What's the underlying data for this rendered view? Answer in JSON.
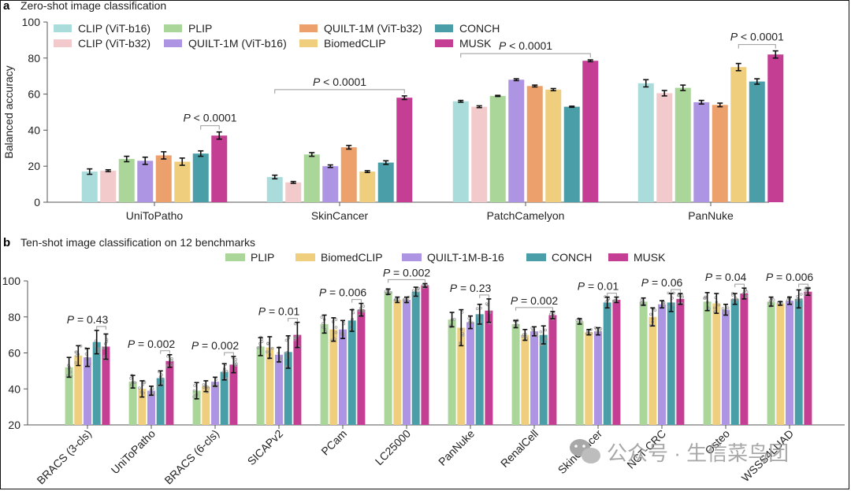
{
  "panels": {
    "a": {
      "letter": "a",
      "title": "Zero-shot image classification"
    },
    "b": {
      "letter": "b",
      "title": "Ten-shot image classification on 12 benchmarks"
    }
  },
  "watermark": {
    "text": "公众号 · 生信菜鸟团",
    "icon": "wechat-icon"
  },
  "chart_data": [
    {
      "id": "a",
      "type": "bar",
      "title": "Zero-shot image classification",
      "xlabel": "",
      "ylabel": "Balanced accuracy",
      "ylim": [
        0,
        100
      ],
      "yticks": [
        0,
        20,
        40,
        60,
        80,
        100
      ],
      "grid": false,
      "legend_position": "top-left",
      "categories": [
        "UniToPatho",
        "SkinCancer",
        "PatchCamelyon",
        "PanNuke"
      ],
      "series": [
        {
          "name": "CLIP (ViT-b16)",
          "color": "#abdcdc",
          "values": [
            17,
            14,
            56,
            66
          ],
          "err": [
            1.5,
            1,
            0.5,
            2
          ]
        },
        {
          "name": "CLIP (ViT-b32)",
          "color": "#f2cacb",
          "values": [
            17.5,
            11,
            53,
            60.5
          ],
          "err": [
            0.5,
            0.5,
            0.5,
            1.5
          ]
        },
        {
          "name": "PLIP",
          "color": "#aad69a",
          "values": [
            24,
            26.5,
            59,
            63.5
          ],
          "err": [
            1.5,
            1,
            0.3,
            1.5
          ]
        },
        {
          "name": "QUILT-1M (ViT-b16)",
          "color": "#ae95e4",
          "values": [
            23,
            20,
            68,
            55.5
          ],
          "err": [
            2,
            0.7,
            0.5,
            1
          ]
        },
        {
          "name": "QUILT-1M (ViT-b32)",
          "color": "#eca06b",
          "values": [
            26,
            30.5,
            64.5,
            54
          ],
          "err": [
            2,
            1,
            0.5,
            1
          ]
        },
        {
          "name": "BiomedCLIP",
          "color": "#efcf7e",
          "values": [
            22.5,
            17,
            62.5,
            75
          ],
          "err": [
            2,
            0.5,
            0.6,
            2
          ]
        },
        {
          "name": "CONCH",
          "color": "#4a9ea8",
          "values": [
            27,
            22,
            53,
            67
          ],
          "err": [
            1.5,
            1,
            0.3,
            1.5
          ]
        },
        {
          "name": "MUSK",
          "color": "#c43f93",
          "values": [
            37,
            58,
            78.5,
            82
          ],
          "err": [
            2,
            1,
            0.5,
            2
          ]
        }
      ],
      "annotations": [
        {
          "category": "UniToPatho",
          "text": "P < 0.0001",
          "from": "CONCH",
          "to": "MUSK"
        },
        {
          "category": "SkinCancer",
          "text": "P < 0.0001",
          "from": "CLIP (ViT-b16)",
          "to": "MUSK"
        },
        {
          "category": "PatchCamelyon",
          "text": "P < 0.0001",
          "from": "CLIP (ViT-b16)",
          "to": "MUSK"
        },
        {
          "category": "PanNuke",
          "text": "P < 0.0001",
          "from": "BiomedCLIP",
          "to": "MUSK"
        }
      ]
    },
    {
      "id": "b",
      "type": "bar",
      "title": "Ten-shot image classification on 12 benchmarks",
      "xlabel": "",
      "ylabel": "",
      "ylim": [
        20,
        100
      ],
      "yticks": [
        20,
        40,
        60,
        80,
        100
      ],
      "grid": false,
      "legend_position": "top-center",
      "categories": [
        "BRACS (3-cls)",
        "UniToPatho",
        "BRACS (6-cls)",
        "SICAPv2",
        "PCam",
        "LC25000",
        "PanNuke",
        "RenalCell",
        "SkinCancer",
        "NCT-CRC",
        "Osteo",
        "WSSS4LUAD"
      ],
      "series": [
        {
          "name": "PLIP",
          "color": "#aad69a",
          "values": [
            52,
            44,
            39,
            63.5,
            76,
            94,
            78.5,
            76,
            77.5,
            88.5,
            88.5,
            88.5
          ],
          "err": [
            5.5,
            3.5,
            4.5,
            5,
            5,
            1.5,
            4,
            2,
            1.5,
            2,
            5,
            2.5
          ]
        },
        {
          "name": "BiomedCLIP",
          "color": "#efcf7e",
          "values": [
            58.5,
            40,
            41.5,
            63,
            73,
            89.5,
            74,
            70,
            71.5,
            80,
            87.5,
            87.5
          ],
          "err": [
            5.5,
            4.5,
            3,
            6,
            6.5,
            1.5,
            10,
            3,
            1.5,
            5,
            5.5,
            1
          ]
        },
        {
          "name": "QUILT-1M-B-16",
          "color": "#ae95e4",
          "values": [
            57.5,
            39,
            44,
            59,
            73,
            89.5,
            77,
            72,
            72,
            87,
            84,
            89
          ],
          "err": [
            5,
            2.5,
            2.5,
            4,
            5,
            1.5,
            3.5,
            2.5,
            2,
            2,
            3,
            2
          ]
        },
        {
          "name": "CONCH",
          "color": "#4a9ea8",
          "values": [
            66,
            46,
            49.5,
            60.5,
            78,
            94,
            81.5,
            70,
            88,
            88,
            90,
            90
          ],
          "err": [
            6.5,
            4,
            4.5,
            9,
            6,
            2.5,
            5.5,
            5,
            3,
            5,
            3,
            5
          ]
        },
        {
          "name": "MUSK",
          "color": "#c43f93",
          "values": [
            63.5,
            55.5,
            53.5,
            70,
            84,
            97.5,
            83.5,
            81,
            89.5,
            90,
            93,
            94
          ],
          "err": [
            7,
            3.5,
            4.5,
            7,
            3.5,
            1,
            6.5,
            2,
            1.5,
            3,
            3,
            2
          ]
        }
      ],
      "annotations": [
        {
          "category": "BRACS (3-cls)",
          "text": "P = 0.43",
          "from": "CONCH",
          "to": "MUSK"
        },
        {
          "category": "UniToPatho",
          "text": "P = 0.002",
          "from": "CONCH",
          "to": "MUSK"
        },
        {
          "category": "BRACS (6-cls)",
          "text": "P = 0.002",
          "from": "CONCH",
          "to": "MUSK"
        },
        {
          "category": "SICAPv2",
          "text": "P = 0.01",
          "from": "CONCH",
          "to": "MUSK"
        },
        {
          "category": "PCam",
          "text": "P = 0.006",
          "from": "CONCH",
          "to": "MUSK"
        },
        {
          "category": "LC25000",
          "text": "P = 0.002",
          "from": "PLIP",
          "to": "MUSK"
        },
        {
          "category": "PanNuke",
          "text": "P = 0.23",
          "from": "CONCH",
          "to": "MUSK"
        },
        {
          "category": "RenalCell",
          "text": "P = 0.002",
          "from": "PLIP",
          "to": "MUSK"
        },
        {
          "category": "SkinCancer",
          "text": "P = 0.01",
          "from": "CONCH",
          "to": "MUSK"
        },
        {
          "category": "NCT-CRC",
          "text": "P = 0.06",
          "from": "CONCH",
          "to": "MUSK"
        },
        {
          "category": "Osteo",
          "text": "P = 0.04",
          "from": "CONCH",
          "to": "MUSK"
        },
        {
          "category": "WSSS4LUAD",
          "text": "P = 0.006",
          "from": "CONCH",
          "to": "MUSK"
        }
      ]
    }
  ]
}
